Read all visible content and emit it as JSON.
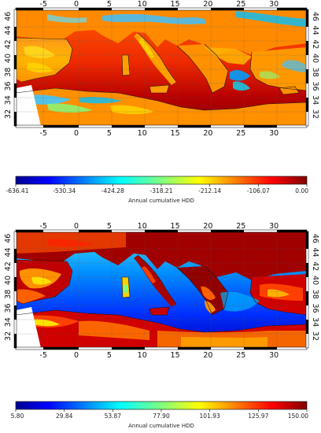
{
  "maps": [
    {
      "id": "map-top",
      "lon_ticks": [
        "-5",
        "0",
        "5",
        "10",
        "15",
        "20",
        "25",
        "30"
      ],
      "lon_values": [
        -5,
        0,
        5,
        10,
        15,
        20,
        25,
        30
      ],
      "lat_ticks": [
        "32",
        "34",
        "36",
        "38",
        "40",
        "42",
        "44",
        "46"
      ],
      "lat_values": [
        32,
        34,
        36,
        38,
        40,
        42,
        44,
        46
      ],
      "colorbar": {
        "ticks": [
          "-636.41",
          "-530.34",
          "-424.28",
          "-318.21",
          "-212.14",
          "-106.07",
          "0.00"
        ],
        "values": [
          -636.41,
          -530.34,
          -424.28,
          -318.21,
          -212.14,
          -106.07,
          0.0
        ],
        "title": "Annual cumulative HDD",
        "range": [
          -636.41,
          0.0
        ]
      }
    },
    {
      "id": "map-bottom",
      "lon_ticks": [
        "-5",
        "0",
        "5",
        "10",
        "15",
        "20",
        "25",
        "30"
      ],
      "lon_values": [
        -5,
        0,
        5,
        10,
        15,
        20,
        25,
        30
      ],
      "lat_ticks": [
        "32",
        "34",
        "36",
        "38",
        "40",
        "42",
        "44",
        "46"
      ],
      "lat_values": [
        32,
        34,
        36,
        38,
        40,
        42,
        44,
        46
      ],
      "colorbar": {
        "ticks": [
          "5.80",
          "29.84",
          "53.87",
          "77.90",
          "101.93",
          "125.97",
          "150.00"
        ],
        "values": [
          5.8,
          29.84,
          53.87,
          77.9,
          101.93,
          125.97,
          150.0
        ],
        "title": "Annual cumulative HDD",
        "range": [
          5.8,
          150.0
        ]
      }
    }
  ],
  "colormap": [
    "#00008f",
    "#0000ff",
    "#0080ff",
    "#00ffff",
    "#80ff80",
    "#ffff00",
    "#ff8000",
    "#ff0000",
    "#800000"
  ]
}
